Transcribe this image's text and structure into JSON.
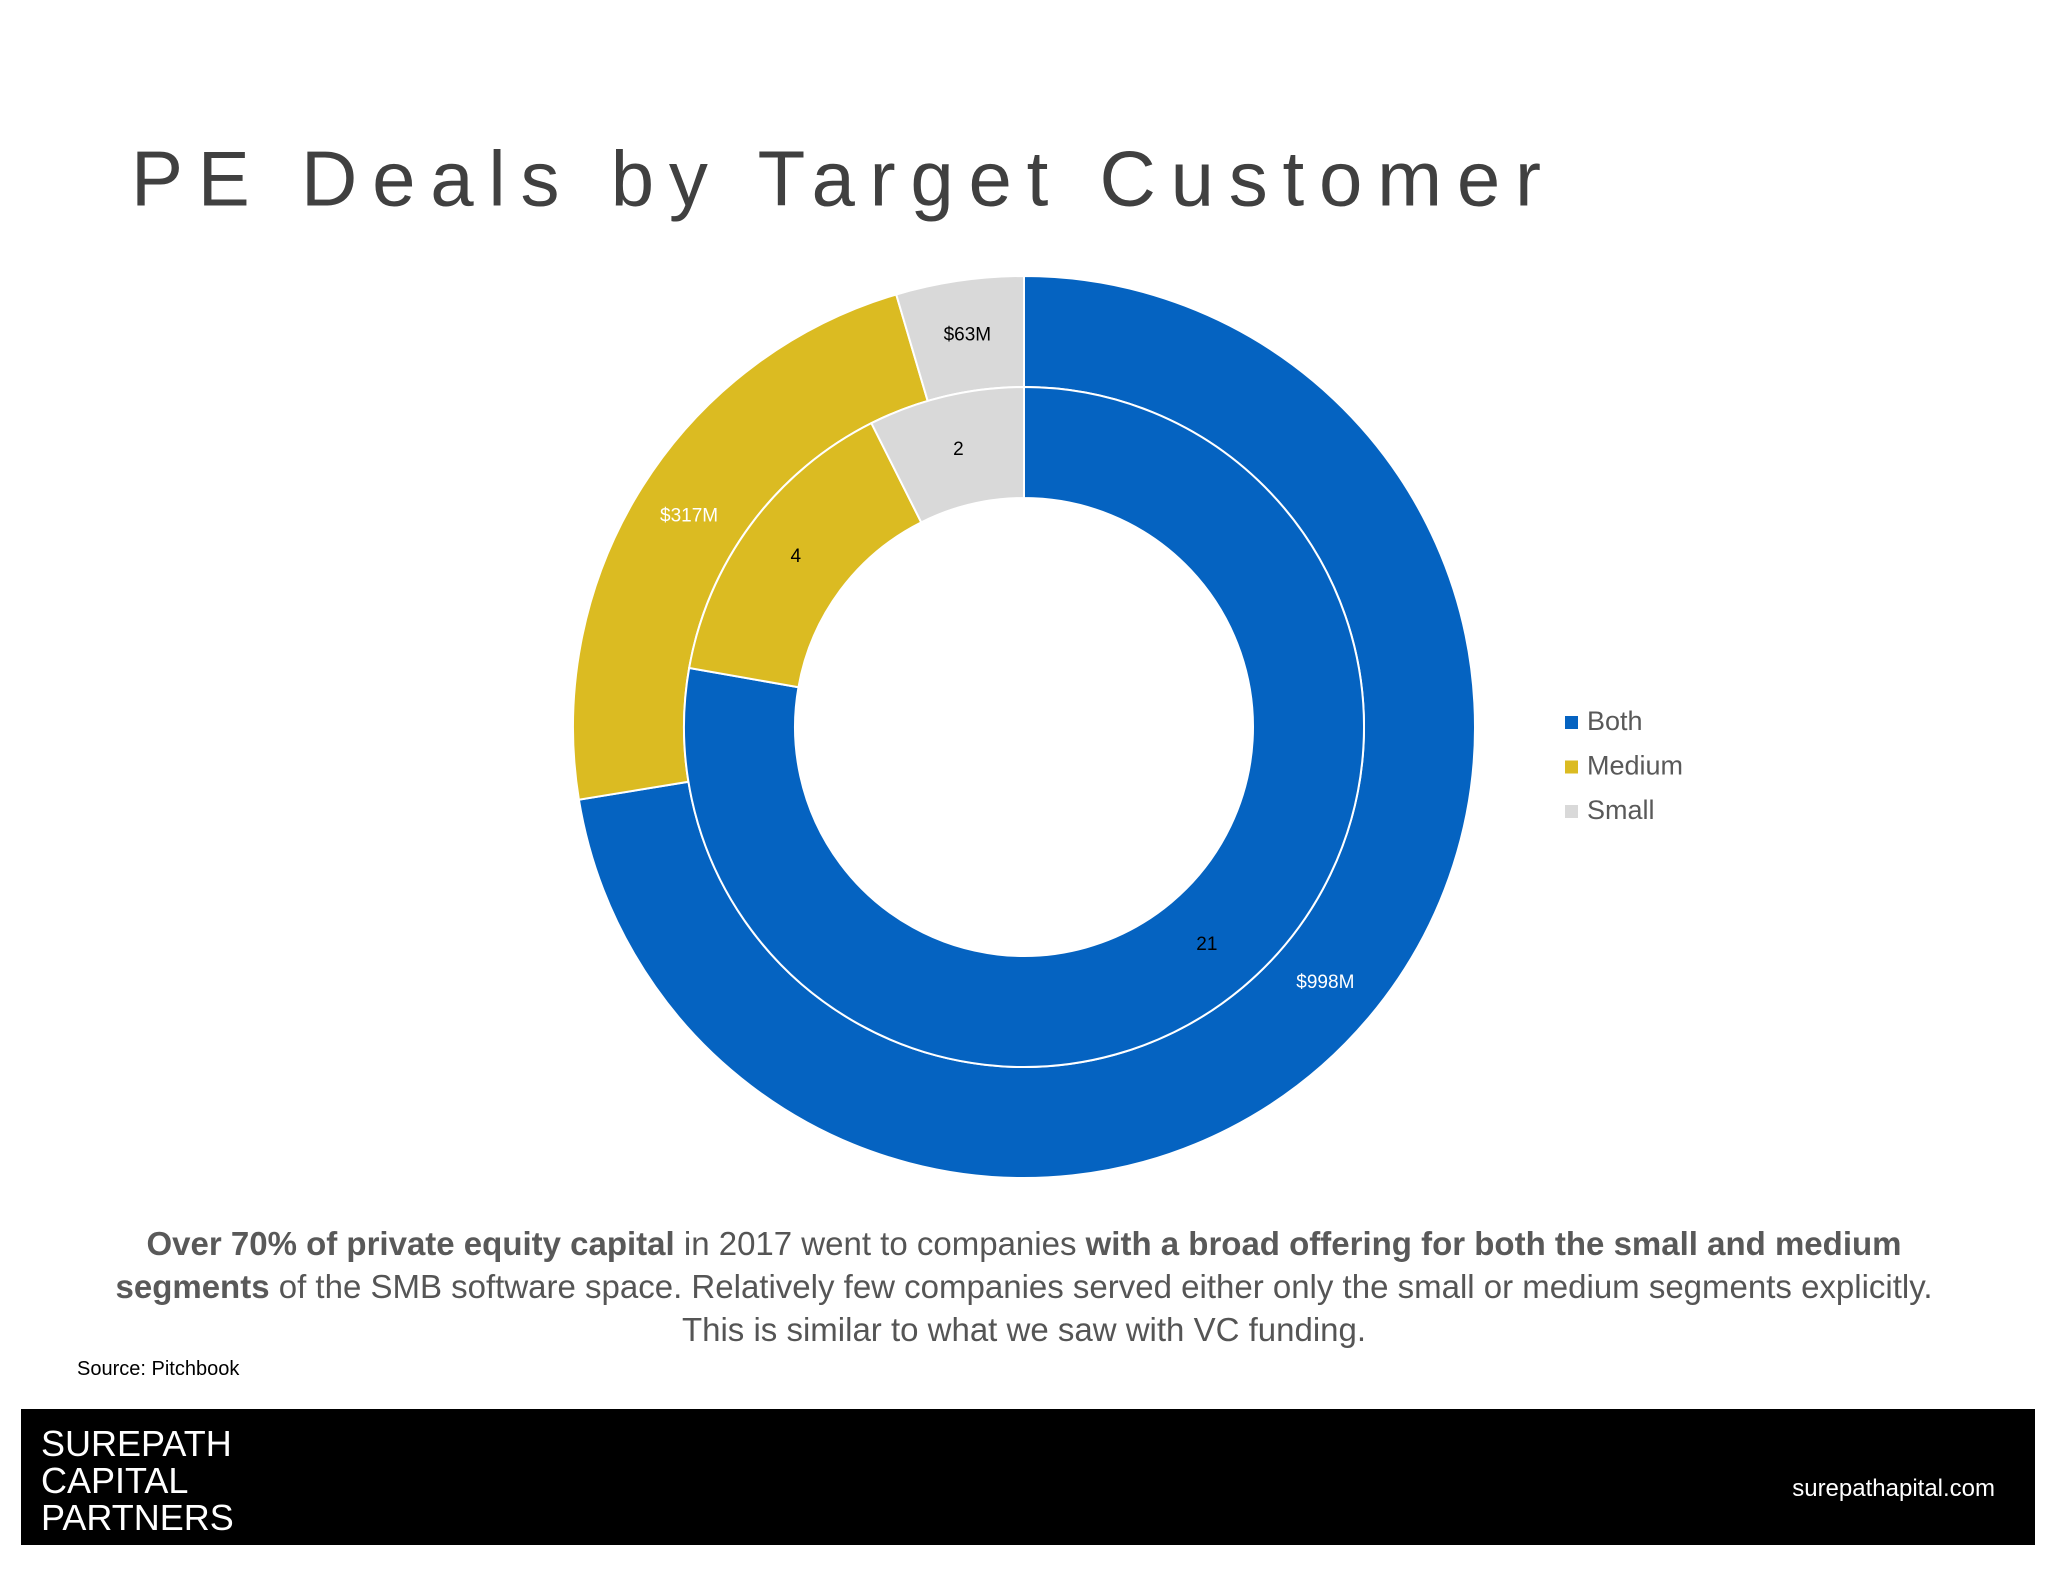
{
  "chart_data": {
    "type": "donut",
    "title": "PE Deals by Target Customer",
    "categories": [
      "Both",
      "Medium",
      "Small"
    ],
    "colors": [
      "#0563c1",
      "#dbbb22",
      "#d9d9d9"
    ],
    "series": [
      {
        "values": [
          998,
          317,
          63
        ],
        "value_labels": [
          "$998M",
          "$317M",
          "$63M"
        ]
      },
      {
        "values": [
          21,
          4,
          2
        ]
      }
    ],
    "legend": "right"
  },
  "caption": [
    {
      "text": "Over 70% of private equity capital",
      "bold": true
    },
    {
      "text": " in 2017 went to companies ",
      "bold": false
    },
    {
      "text": "with a broad offering for both the small and medium segments",
      "bold": true
    },
    {
      "text": " of the SMB software space. Relatively few companies served either only the small or medium segments explicitly. This is similar to what we saw with VC funding.",
      "bold": false
    }
  ],
  "source": "Source: Pitchbook",
  "footer": {
    "logo": [
      "SUREPATH",
      "CAPITAL",
      "PARTNERS"
    ],
    "website": "surepathapital.com"
  }
}
